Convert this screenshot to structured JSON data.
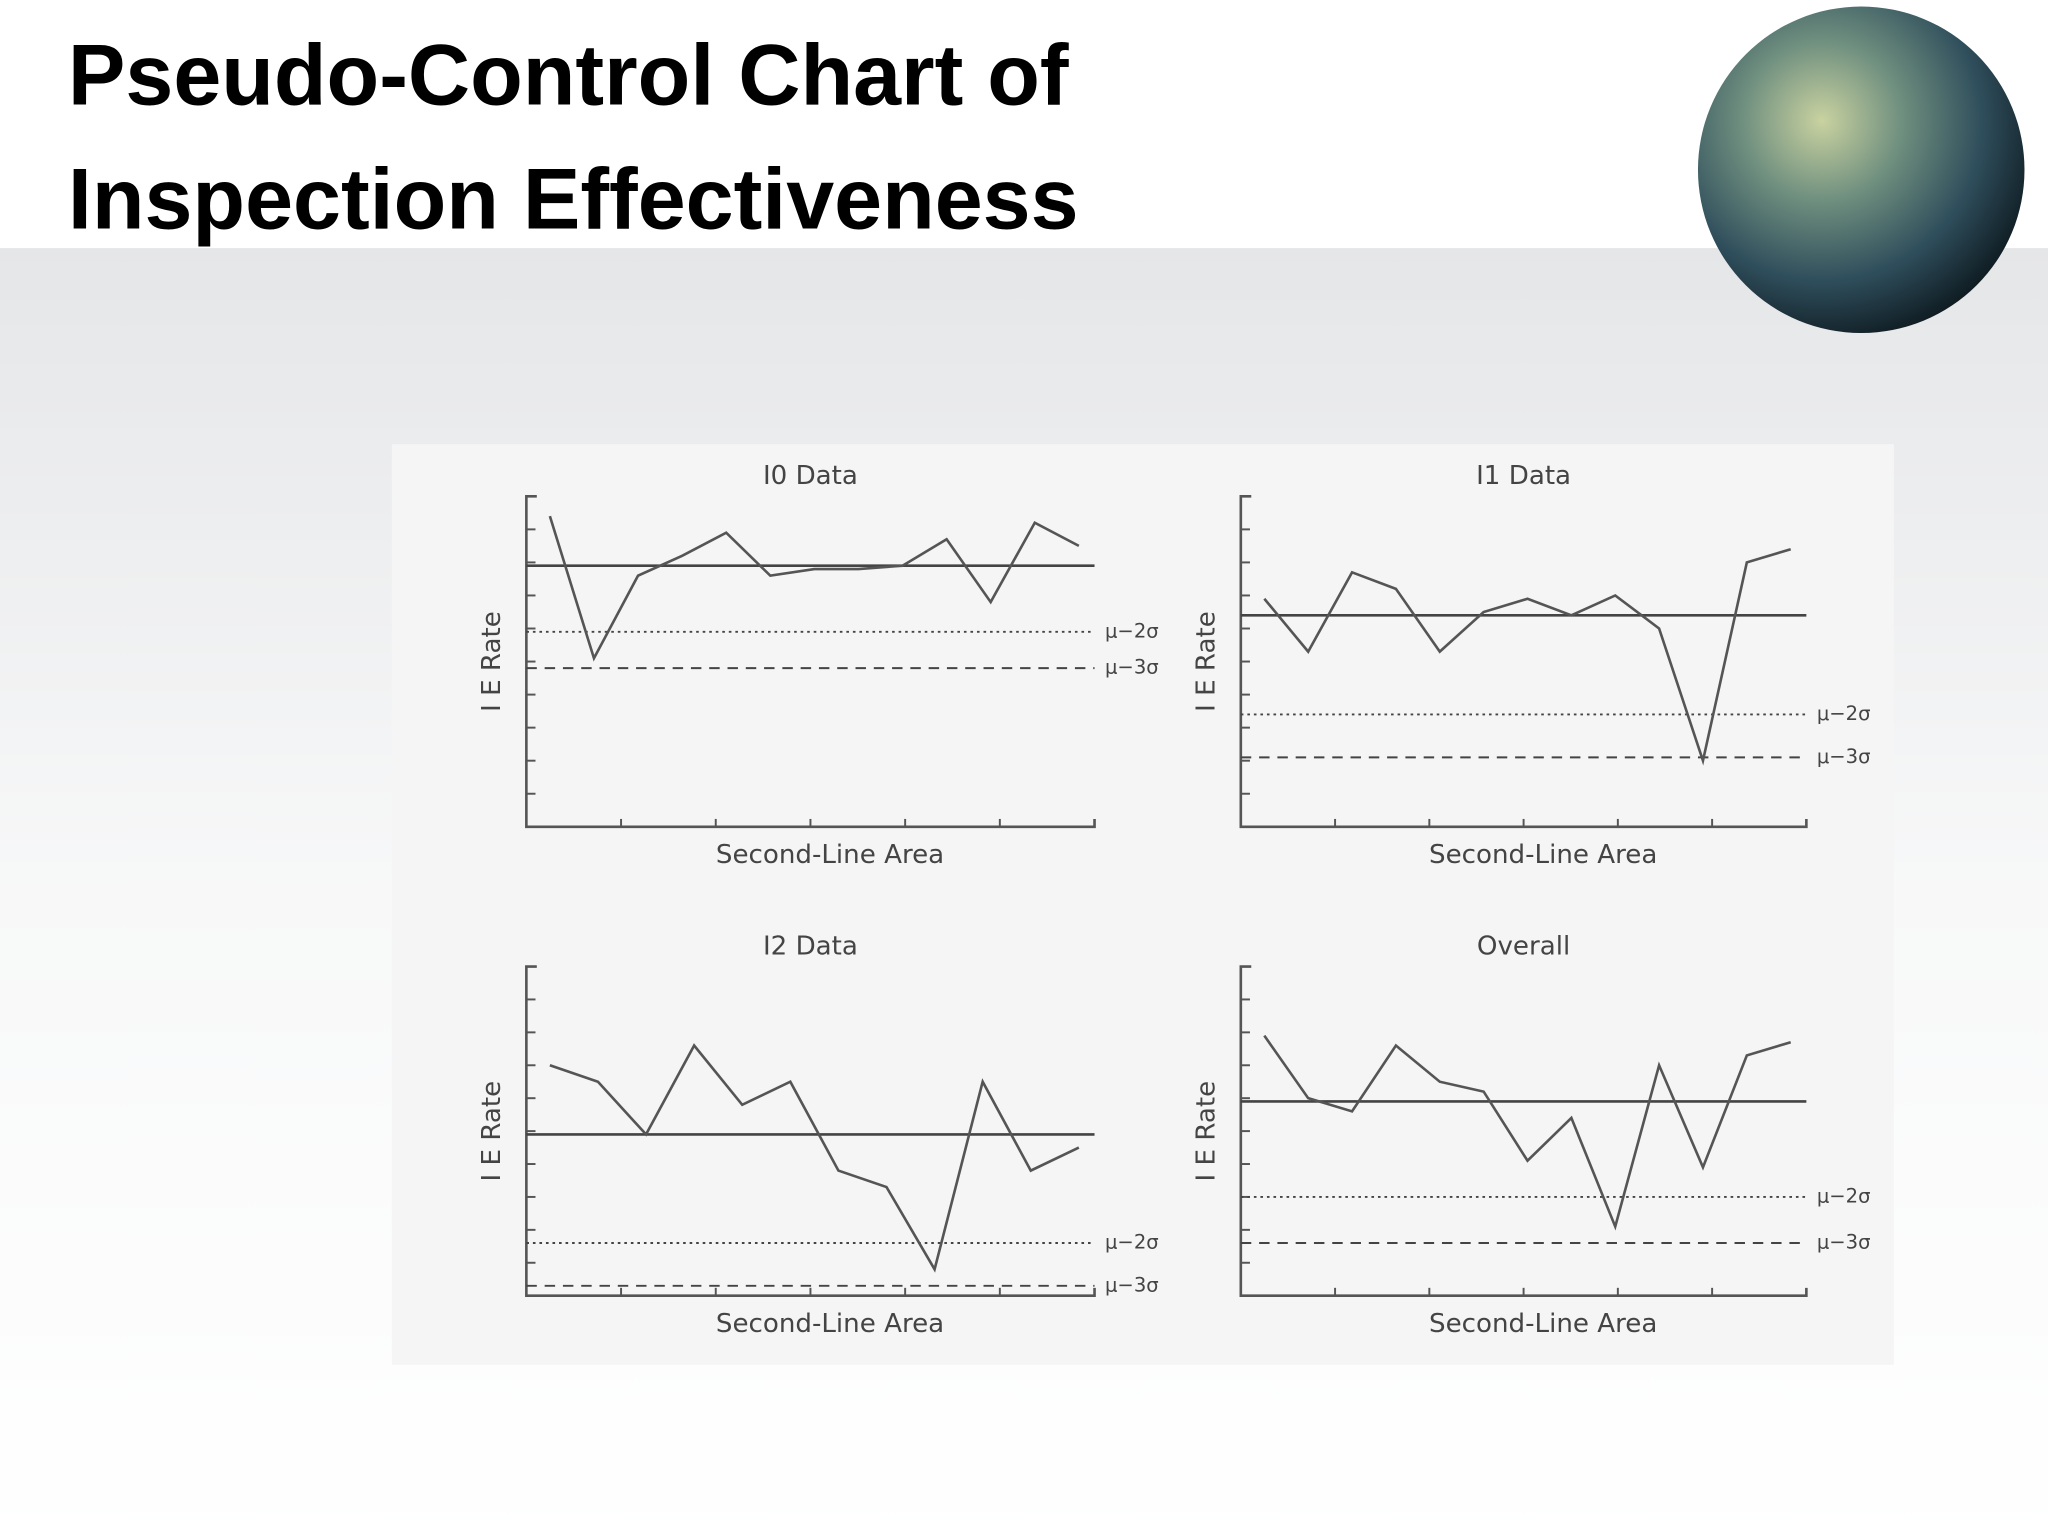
{
  "title_lines": [
    "Pseudo-Control Chart of",
    "Inspection Effectiveness"
  ],
  "chart_data": [
    {
      "type": "line",
      "title": "I0 Data",
      "xlabel": "Second-Line Area",
      "ylabel": "I E Rate",
      "categories": [
        null,
        null,
        null,
        null,
        null,
        null,
        null,
        null,
        null,
        null,
        null,
        null,
        null
      ],
      "series": [
        {
          "color": "#555555",
          "values": [
            9.4,
            5.1,
            7.6,
            8.2,
            8.9,
            7.6,
            7.8,
            7.8,
            7.9,
            8.7,
            6.8,
            9.2,
            8.5
          ]
        }
      ],
      "ylim": [
        0,
        10
      ],
      "yticks": [
        1,
        2,
        3,
        4,
        5,
        6,
        7,
        8,
        9
      ],
      "reference_lines": [
        {
          "value": 7.9,
          "style": "solid"
        },
        {
          "value": 5.9,
          "style": "dotted",
          "label": "μ−2σ"
        },
        {
          "value": 4.8,
          "style": "dashed",
          "label": "μ−3σ"
        }
      ]
    },
    {
      "type": "line",
      "title": "I1 Data",
      "xlabel": "Second-Line Area",
      "ylabel": "I E Rate",
      "categories": [
        null,
        null,
        null,
        null,
        null,
        null,
        null,
        null,
        null,
        null,
        null,
        null,
        null
      ],
      "series": [
        {
          "color": "#555555",
          "values": [
            6.9,
            5.3,
            7.7,
            7.2,
            5.3,
            6.5,
            6.9,
            6.4,
            7.0,
            6.0,
            2.0,
            8.0,
            8.4
          ]
        }
      ],
      "ylim": [
        0,
        10
      ],
      "yticks": [
        1,
        2,
        3,
        4,
        5,
        6,
        7,
        8,
        9
      ],
      "reference_lines": [
        {
          "value": 6.4,
          "style": "solid"
        },
        {
          "value": 3.4,
          "style": "dotted",
          "label": "μ−2σ"
        },
        {
          "value": 2.1,
          "style": "dashed",
          "label": "μ−3σ"
        }
      ]
    },
    {
      "type": "line",
      "title": "I2 Data",
      "xlabel": "Second-Line Area",
      "ylabel": "I E Rate",
      "categories": [
        null,
        null,
        null,
        null,
        null,
        null,
        null,
        null,
        null,
        null,
        null,
        null
      ],
      "series": [
        {
          "color": "#555555",
          "values": [
            7.0,
            6.5,
            4.9,
            7.6,
            5.8,
            6.5,
            3.8,
            3.3,
            0.8,
            6.5,
            3.8,
            4.5
          ]
        }
      ],
      "ylim": [
        0,
        10
      ],
      "yticks": [
        1,
        2,
        3,
        4,
        5,
        6,
        7,
        8,
        9
      ],
      "reference_lines": [
        {
          "value": 4.9,
          "style": "solid"
        },
        {
          "value": 1.6,
          "style": "dotted",
          "label": "μ−2σ"
        },
        {
          "value": 0.3,
          "style": "dashed",
          "label": "μ−3σ"
        }
      ]
    },
    {
      "type": "line",
      "title": "Overall",
      "xlabel": "Second-Line Area",
      "ylabel": "I E Rate",
      "categories": [
        null,
        null,
        null,
        null,
        null,
        null,
        null,
        null,
        null,
        null,
        null,
        null,
        null
      ],
      "series": [
        {
          "color": "#555555",
          "values": [
            7.9,
            6.0,
            5.6,
            7.6,
            6.5,
            6.2,
            4.1,
            5.4,
            2.1,
            7.0,
            3.9,
            7.3,
            7.7
          ]
        }
      ],
      "ylim": [
        0,
        10
      ],
      "yticks": [
        1,
        2,
        3,
        4,
        5,
        6,
        7,
        8,
        9
      ],
      "reference_lines": [
        {
          "value": 5.9,
          "style": "solid"
        },
        {
          "value": 3.0,
          "style": "dotted",
          "label": "μ−2σ"
        },
        {
          "value": 1.6,
          "style": "dashed",
          "label": "μ−3σ"
        }
      ]
    }
  ]
}
